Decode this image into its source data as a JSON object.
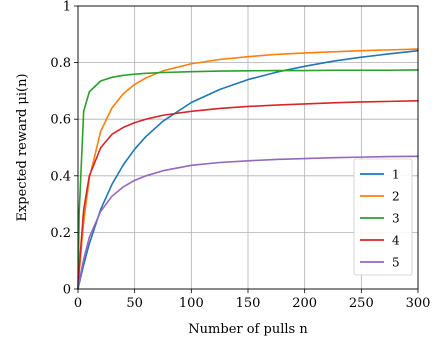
{
  "chart_data": {
    "type": "line",
    "title": "",
    "xlabel": "Number of pulls n",
    "ylabel": "Expected reward μi(n)",
    "xlim": [
      0,
      300
    ],
    "ylim": [
      0,
      1
    ],
    "x_ticks": [
      0,
      50,
      100,
      150,
      200,
      250,
      300
    ],
    "y_ticks": [
      0,
      0.2,
      0.4,
      0.6,
      0.8,
      1
    ],
    "x_tick_labels": [
      "0",
      "50",
      "100",
      "150",
      "200",
      "250",
      "300"
    ],
    "y_tick_labels": [
      "0",
      "0.2",
      "0.4",
      "0.6",
      "0.8",
      "1"
    ],
    "grid": true,
    "legend_position": "lower-right",
    "x": [
      0,
      1,
      5,
      10,
      20,
      30,
      40,
      50,
      60,
      75,
      100,
      125,
      150,
      175,
      200,
      225,
      250,
      275,
      300
    ],
    "series": [
      {
        "name": "1",
        "color": "#1f77b4",
        "values": [
          0.0,
          0.018,
          0.086,
          0.16,
          0.281,
          0.37,
          0.439,
          0.494,
          0.539,
          0.593,
          0.659,
          0.705,
          0.74,
          0.766,
          0.787,
          0.805,
          0.819,
          0.831,
          0.842
        ]
      },
      {
        "name": "2",
        "color": "#ff7f0e",
        "values": [
          0.0,
          0.056,
          0.237,
          0.391,
          0.557,
          0.64,
          0.69,
          0.723,
          0.746,
          0.771,
          0.796,
          0.811,
          0.821,
          0.829,
          0.834,
          0.838,
          0.842,
          0.845,
          0.848
        ]
      },
      {
        "name": "3",
        "color": "#2ca02c",
        "values": [
          0.0,
          0.265,
          0.628,
          0.697,
          0.735,
          0.748,
          0.755,
          0.759,
          0.762,
          0.765,
          0.768,
          0.77,
          0.771,
          0.772,
          0.772,
          0.773,
          0.773,
          0.773,
          0.774
        ]
      },
      {
        "name": "4",
        "color": "#d62728",
        "values": [
          0.0,
          0.071,
          0.28,
          0.4,
          0.499,
          0.547,
          0.571,
          0.588,
          0.6,
          0.614,
          0.628,
          0.638,
          0.645,
          0.65,
          0.654,
          0.658,
          0.661,
          0.663,
          0.665
        ]
      },
      {
        "name": "5",
        "color": "#9467bd",
        "values": [
          0.0,
          0.024,
          0.105,
          0.183,
          0.274,
          0.328,
          0.361,
          0.384,
          0.4,
          0.418,
          0.437,
          0.447,
          0.453,
          0.458,
          0.461,
          0.464,
          0.466,
          0.468,
          0.469
        ]
      }
    ]
  }
}
